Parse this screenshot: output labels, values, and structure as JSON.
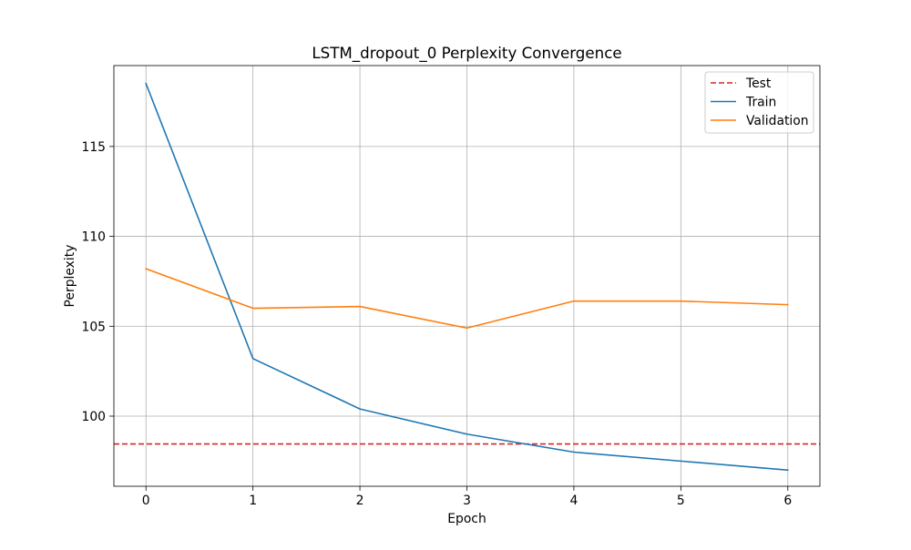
{
  "chart_data": {
    "type": "line",
    "title": "LSTM_dropout_0 Perplexity Convergence",
    "xlabel": "Epoch",
    "ylabel": "Perplexity",
    "xlim": [
      -0.3,
      6.3
    ],
    "ylim": [
      96.1,
      119.5
    ],
    "xticks": [
      0,
      1,
      2,
      3,
      4,
      5,
      6
    ],
    "yticks": [
      100,
      105,
      110,
      115
    ],
    "grid": true,
    "legend_position": "top-right",
    "x": [
      0,
      1,
      2,
      3,
      4,
      5,
      6
    ],
    "series": [
      {
        "name": "Train",
        "color": "#1f77b4",
        "style": "solid",
        "values": [
          118.5,
          103.2,
          100.4,
          99.0,
          98.0,
          97.5,
          97.0
        ]
      },
      {
        "name": "Validation",
        "color": "#ff7f0e",
        "style": "solid",
        "values": [
          108.2,
          106.0,
          106.1,
          104.9,
          106.4,
          106.4,
          106.2
        ]
      }
    ],
    "reference_lines": [
      {
        "name": "Test",
        "color": "#d62728",
        "style": "dashed",
        "orientation": "horizontal",
        "value": 98.45
      }
    ],
    "legend_order": [
      "Test",
      "Train",
      "Validation"
    ]
  }
}
